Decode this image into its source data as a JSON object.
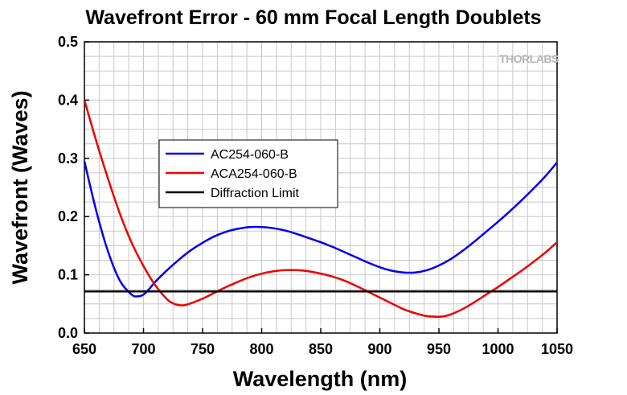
{
  "chart_data": {
    "type": "line",
    "title": "Wavefront Error - 60 mm Focal Length Doublets",
    "xlabel": "Wavelength (nm)",
    "ylabel": "Wavefront (Waves)",
    "xlim": [
      650,
      1050
    ],
    "ylim": [
      0.0,
      0.5
    ],
    "xticks": [
      "650",
      "700",
      "750",
      "800",
      "850",
      "900",
      "950",
      "1000",
      "1050"
    ],
    "yticks": [
      "0.0",
      "0.1",
      "0.2",
      "0.3",
      "0.4",
      "0.5"
    ],
    "grid": true,
    "legend_position": "upper-left-center",
    "series": [
      {
        "name": "AC254-060-B",
        "color": "#0000ee",
        "x": [
          650,
          660,
          670,
          680,
          690,
          695,
          700,
          705,
          710,
          720,
          730,
          740,
          750,
          760,
          770,
          780,
          790,
          800,
          810,
          820,
          830,
          840,
          850,
          860,
          870,
          880,
          890,
          900,
          910,
          920,
          930,
          940,
          950,
          960,
          970,
          980,
          990,
          1000,
          1010,
          1020,
          1030,
          1040,
          1050
        ],
        "y": [
          0.295,
          0.21,
          0.14,
          0.09,
          0.066,
          0.063,
          0.066,
          0.076,
          0.088,
          0.108,
          0.126,
          0.142,
          0.155,
          0.166,
          0.174,
          0.179,
          0.182,
          0.182,
          0.18,
          0.176,
          0.17,
          0.163,
          0.156,
          0.148,
          0.139,
          0.13,
          0.121,
          0.113,
          0.107,
          0.104,
          0.104,
          0.108,
          0.116,
          0.127,
          0.141,
          0.157,
          0.174,
          0.191,
          0.209,
          0.228,
          0.248,
          0.269,
          0.293
        ]
      },
      {
        "name": "ACA254-060-B",
        "color": "#ee0000",
        "x": [
          650,
          660,
          670,
          680,
          690,
          700,
          710,
          720,
          725,
          730,
          735,
          740,
          750,
          760,
          770,
          780,
          790,
          800,
          810,
          820,
          830,
          840,
          850,
          860,
          870,
          880,
          890,
          900,
          910,
          920,
          930,
          940,
          950,
          955,
          960,
          970,
          980,
          990,
          1000,
          1010,
          1020,
          1030,
          1040,
          1050
        ],
        "y": [
          0.4,
          0.33,
          0.265,
          0.205,
          0.155,
          0.115,
          0.082,
          0.058,
          0.051,
          0.048,
          0.048,
          0.051,
          0.059,
          0.069,
          0.079,
          0.088,
          0.096,
          0.102,
          0.106,
          0.108,
          0.108,
          0.106,
          0.102,
          0.097,
          0.09,
          0.081,
          0.071,
          0.061,
          0.051,
          0.041,
          0.034,
          0.029,
          0.028,
          0.029,
          0.032,
          0.041,
          0.053,
          0.066,
          0.079,
          0.093,
          0.107,
          0.122,
          0.138,
          0.156
        ]
      },
      {
        "name": "Diffraction Limit",
        "color": "#000000",
        "x": [
          650,
          1050
        ],
        "y": [
          0.0714,
          0.0714
        ]
      }
    ],
    "watermark": "THORLABS"
  }
}
